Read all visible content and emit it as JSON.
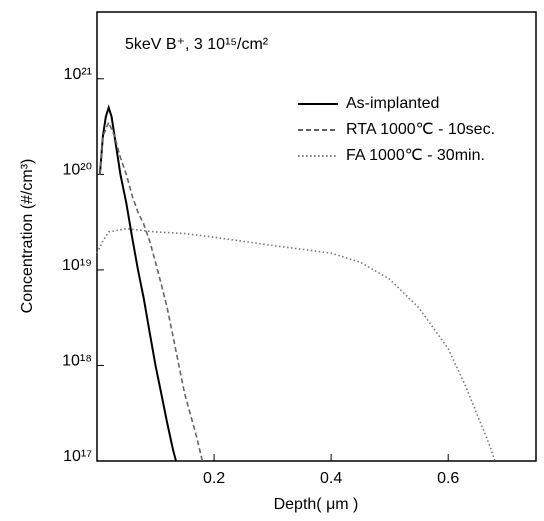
{
  "chart_data": {
    "type": "line",
    "annotation": "5keV B⁺,  3    10¹⁵/cm²",
    "x_label": "Depth( μm )",
    "y_label": "Concentration (#/cm³)",
    "xlim": [
      0,
      0.75
    ],
    "xticks": [
      0.2,
      0.4,
      0.6
    ],
    "ylim": [
      1e+17,
      5e+21
    ],
    "ylog": true,
    "yticks": [
      {
        "value": 1e+17,
        "label": "10¹⁷"
      },
      {
        "value": 1e+18,
        "label": "10¹⁸"
      },
      {
        "value": 1e+19,
        "label": "10¹⁹"
      },
      {
        "value": 1e+20,
        "label": "10²⁰"
      },
      {
        "value": 1e+21,
        "label": "10²¹"
      }
    ],
    "legend": "upper right",
    "series": [
      {
        "name": "As-implanted",
        "color": "#000000",
        "linestyle": "solid",
        "x": [
          0.005,
          0.01,
          0.015,
          0.02,
          0.025,
          0.03,
          0.04,
          0.05,
          0.06,
          0.07,
          0.08,
          0.09,
          0.1,
          0.11,
          0.12,
          0.13,
          0.135
        ],
        "values": [
          1e+20,
          2.5e+20,
          4e+20,
          5e+20,
          4e+20,
          2.5e+20,
          1e+20,
          5e+19,
          2.2e+19,
          1e+19,
          5e+18,
          2.2e+18,
          1e+18,
          5e+17,
          2.5e+17,
          1.3e+17,
          1e+17
        ]
      },
      {
        "name": "RTA 1000℃ - 10sec.",
        "color": "#666666",
        "linestyle": "dashed",
        "x": [
          0.005,
          0.01,
          0.02,
          0.03,
          0.04,
          0.05,
          0.06,
          0.07,
          0.08,
          0.09,
          0.1,
          0.11,
          0.12,
          0.13,
          0.14,
          0.15,
          0.16,
          0.17,
          0.18
        ],
        "values": [
          1e+20,
          2.5e+20,
          3.5e+20,
          2.5e+20,
          1.5e+20,
          1e+20,
          6e+19,
          4e+19,
          3e+19,
          2e+19,
          1.2e+19,
          7e+18,
          4e+18,
          2e+18,
          1e+18,
          5e+17,
          3e+17,
          1.8e+17,
          1e+17
        ]
      },
      {
        "name": "FA 1000℃ - 30min.",
        "color": "#777777",
        "linestyle": "dotted",
        "x": [
          0.0,
          0.01,
          0.02,
          0.05,
          0.1,
          0.15,
          0.2,
          0.3,
          0.4,
          0.45,
          0.5,
          0.55,
          0.6,
          0.63,
          0.65,
          0.67,
          0.68
        ],
        "values": [
          1.5e+19,
          2e+19,
          2.5e+19,
          2.7e+19,
          2.5e+19,
          2.4e+19,
          2.2e+19,
          1.8e+19,
          1.5e+19,
          1.2e+19,
          8e+18,
          4e+18,
          1.5e+18,
          6e+17,
          3e+17,
          1.5e+17,
          1e+17
        ]
      }
    ]
  }
}
